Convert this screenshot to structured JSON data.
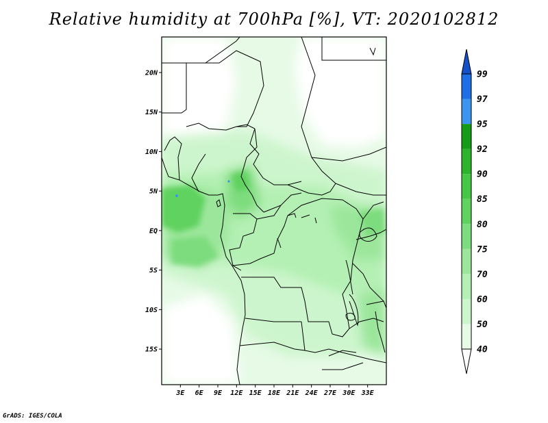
{
  "title": "Relative humidity at 700hPa [%], VT: 2020102812",
  "credit": "GrADS: IGES/COLA",
  "map": {
    "lon_range": [
      0,
      36
    ],
    "lat_range": [
      -19.5,
      24.5
    ],
    "lat_ticks": [
      "20N",
      "15N",
      "10N",
      "5N",
      "EQ",
      "5S",
      "10S",
      "15S"
    ],
    "lat_tick_values": [
      20,
      15,
      10,
      5,
      0,
      -5,
      -10,
      -15
    ],
    "lon_ticks": [
      "3E",
      "6E",
      "9E",
      "12E",
      "15E",
      "18E",
      "21E",
      "24E",
      "27E",
      "30E",
      "33E"
    ],
    "lon_tick_values": [
      3,
      6,
      9,
      12,
      15,
      18,
      21,
      24,
      27,
      30,
      33
    ]
  },
  "colorbar": {
    "levels": [
      "40",
      "50",
      "60",
      "70",
      "75",
      "80",
      "85",
      "90",
      "92",
      "95",
      "97",
      "99"
    ],
    "colors": [
      "#ffffff",
      "#e6fae6",
      "#cdf5cd",
      "#b4f0b4",
      "#9be69b",
      "#7ddc7d",
      "#5fd25f",
      "#46c846",
      "#2db42d",
      "#169b16",
      "#3c96f0",
      "#1e6ee6",
      "#1450c8"
    ]
  }
}
